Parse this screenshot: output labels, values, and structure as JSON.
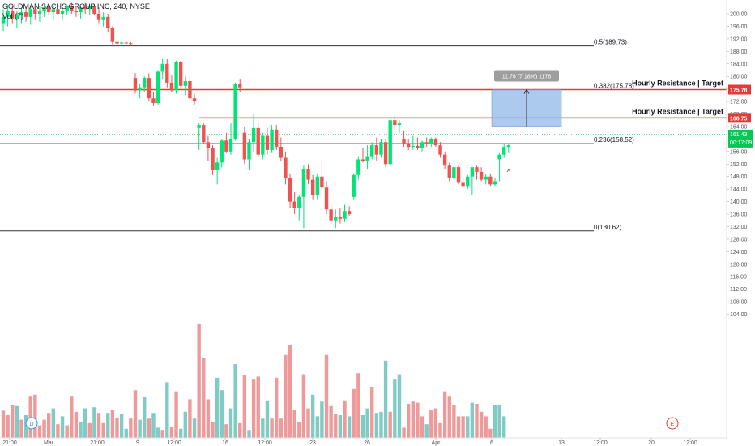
{
  "header": {
    "symbol_line": "GOLDMAN SACHS GROUP INC, 240, NYSE",
    "volume_line": "Vol (7)"
  },
  "colors": {
    "up": "#26a69a",
    "up_bright": "#00e676",
    "down": "#ef5350",
    "vol_up": "#80cbc4",
    "vol_down": "#ef9a9a",
    "resistance": "#e53935",
    "fib": "#333333",
    "current": "#00c853",
    "box_fill": "#90b8e8",
    "measure_bg": "#9e9e9e"
  },
  "fib_levels": [
    {
      "label": "0.5(189.73)",
      "price": 189.73
    },
    {
      "label": "0.382(175.78)",
      "price": 175.78
    },
    {
      "label": "0.236(158.52)",
      "price": 158.52
    },
    {
      "label": "0(130.62)",
      "price": 130.62
    }
  ],
  "resistances": [
    {
      "label": "Hourly Resistance | Target",
      "price": 175.78,
      "badge": "175.78"
    },
    {
      "label": "Hourly Resistance | Target",
      "price": 166.75,
      "badge": "166.75"
    }
  ],
  "current_price": {
    "price": 161.43,
    "badge_top": "161.43",
    "badge_bottom": "00:17:09"
  },
  "measure": {
    "label": "11.76 (7.18%) 1176",
    "from": 164.02,
    "to": 175.78
  },
  "price_axis": {
    "min": 100,
    "max": 202,
    "ticks": [
      "200.00",
      "196.00",
      "192.00",
      "188.00",
      "184.00",
      "180.00",
      "176.00",
      "172.00",
      "168.00",
      "164.00",
      "160.00",
      "156.00",
      "152.00",
      "148.00",
      "144.00",
      "140.00",
      "136.00",
      "132.00",
      "128.00",
      "124.00",
      "120.00",
      "116.00",
      "112.00",
      "108.00",
      "104.00"
    ]
  },
  "time_axis": {
    "ticks": [
      "21:00",
      "Mar",
      "21:00",
      "9",
      "12:00",
      "16",
      "12:00",
      "23",
      "26",
      "Apr",
      "6",
      "13",
      "12:00",
      "20",
      "12:00"
    ]
  },
  "markers": {
    "dividend": "D",
    "earnings": "E"
  },
  "chart_data": {
    "type": "candlestick",
    "title": "GOLDMAN SACHS GROUP INC, 240, NYSE",
    "ylim": [
      100,
      202
    ],
    "candles": [
      [
        197.0,
        201.5,
        194.5,
        199.0
      ],
      [
        199.0,
        203.0,
        196.0,
        201.0
      ],
      [
        201.0,
        202.5,
        197.0,
        198.5
      ],
      [
        198.5,
        201.0,
        195.5,
        199.5
      ],
      [
        199.5,
        202.0,
        197.0,
        200.5
      ],
      [
        200.5,
        202.0,
        197.5,
        199.0
      ],
      [
        199.0,
        202.0,
        196.5,
        201.5
      ],
      [
        201.5,
        202.5,
        198.0,
        200.0
      ],
      [
        200.0,
        202.5,
        197.5,
        201.0
      ],
      [
        201.0,
        203.0,
        199.0,
        202.0
      ],
      [
        202.0,
        203.0,
        199.5,
        200.5
      ],
      [
        200.5,
        202.5,
        198.0,
        201.5
      ],
      [
        201.5,
        203.0,
        199.0,
        200.0
      ],
      [
        200.0,
        202.0,
        198.0,
        201.0
      ],
      [
        201.0,
        203.0,
        199.5,
        202.5
      ],
      [
        202.5,
        203.5,
        200.0,
        201.0
      ],
      [
        201.0,
        202.5,
        199.0,
        200.5
      ],
      [
        200.5,
        202.5,
        198.5,
        202.0
      ],
      [
        202.0,
        203.5,
        200.0,
        201.5
      ],
      [
        201.5,
        203.0,
        199.5,
        202.5
      ],
      [
        202.5,
        203.0,
        199.5,
        200.0
      ],
      [
        200.0,
        202.0,
        197.0,
        198.0
      ],
      [
        198.0,
        200.5,
        196.0,
        199.0
      ],
      [
        199.0,
        200.0,
        194.0,
        195.5
      ],
      [
        195.5,
        196.0,
        189.5,
        191.0
      ],
      [
        191.0,
        192.5,
        188.0,
        190.5
      ],
      [
        190.5,
        191.5,
        189.5,
        190.8
      ],
      [
        190.8,
        191.2,
        190.0,
        190.6
      ],
      [
        190.6,
        191.0,
        189.8,
        190.4
      ],
      [
        179.5,
        181.0,
        174.5,
        175.5
      ],
      [
        175.5,
        177.5,
        173.0,
        176.5
      ],
      [
        176.5,
        180.0,
        175.0,
        179.5
      ],
      [
        179.5,
        181.0,
        172.0,
        173.0
      ],
      [
        173.0,
        175.0,
        170.5,
        171.5
      ],
      [
        171.5,
        182.0,
        171.0,
        181.5
      ],
      [
        181.5,
        185.5,
        179.0,
        184.0
      ],
      [
        184.0,
        185.5,
        176.5,
        178.0
      ],
      [
        178.0,
        180.5,
        175.0,
        175.5
      ],
      [
        175.5,
        185.0,
        174.5,
        184.5
      ],
      [
        184.5,
        185.0,
        176.0,
        177.0
      ],
      [
        177.0,
        180.0,
        174.0,
        178.5
      ],
      [
        178.5,
        180.5,
        172.0,
        173.0
      ],
      [
        173.0,
        174.5,
        171.0,
        172.0
      ],
      [
        163.5,
        165.0,
        156.5,
        164.5
      ],
      [
        164.5,
        165.0,
        158.5,
        159.0
      ],
      [
        159.0,
        161.0,
        153.0,
        157.0
      ],
      [
        157.0,
        158.0,
        148.5,
        150.0
      ],
      [
        150.0,
        154.0,
        145.5,
        152.5
      ],
      [
        152.5,
        160.0,
        151.0,
        159.5
      ],
      [
        159.5,
        162.0,
        155.5,
        156.0
      ],
      [
        156.0,
        165.0,
        155.0,
        160.0
      ],
      [
        160.0,
        178.0,
        159.5,
        177.5
      ],
      [
        177.5,
        179.0,
        175.0,
        176.5
      ],
      [
        162.0,
        164.0,
        152.0,
        153.5
      ],
      [
        153.5,
        160.0,
        150.0,
        159.0
      ],
      [
        159.0,
        168.0,
        156.0,
        163.5
      ],
      [
        163.5,
        165.0,
        154.5,
        155.0
      ],
      [
        155.0,
        162.0,
        153.5,
        161.0
      ],
      [
        161.0,
        163.5,
        155.0,
        156.5
      ],
      [
        156.5,
        164.5,
        155.5,
        163.0
      ],
      [
        163.0,
        164.5,
        156.5,
        157.5
      ],
      [
        157.5,
        160.5,
        153.0,
        154.0
      ],
      [
        154.0,
        156.0,
        145.5,
        147.5
      ],
      [
        147.5,
        149.0,
        138.0,
        140.0
      ],
      [
        140.0,
        143.0,
        136.0,
        138.0
      ],
      [
        138.0,
        142.0,
        134.0,
        141.5
      ],
      [
        141.5,
        151.5,
        131.5,
        150.5
      ],
      [
        150.5,
        152.0,
        145.5,
        147.0
      ],
      [
        147.0,
        148.5,
        140.5,
        142.0
      ],
      [
        142.0,
        149.0,
        140.5,
        148.0
      ],
      [
        148.0,
        153.0,
        143.5,
        144.5
      ],
      [
        144.5,
        146.5,
        136.0,
        137.5
      ],
      [
        137.5,
        139.0,
        132.5,
        134.0
      ],
      [
        134.0,
        137.5,
        131.5,
        135.0
      ],
      [
        135.0,
        138.0,
        133.0,
        134.5
      ],
      [
        134.5,
        139.0,
        133.5,
        137.0
      ],
      [
        137.0,
        138.5,
        135.5,
        136.0
      ],
      [
        141.5,
        149.0,
        140.5,
        148.5
      ],
      [
        148.5,
        154.5,
        147.0,
        153.5
      ],
      [
        153.5,
        157.0,
        152.5,
        153.0
      ],
      [
        153.0,
        158.0,
        150.5,
        154.5
      ],
      [
        154.5,
        159.0,
        153.5,
        158.0
      ],
      [
        158.0,
        160.5,
        153.0,
        155.0
      ],
      [
        155.0,
        160.0,
        154.0,
        159.0
      ],
      [
        159.0,
        160.0,
        151.0,
        152.0
      ],
      [
        152.0,
        166.5,
        151.5,
        166.0
      ],
      [
        166.0,
        167.5,
        163.0,
        164.5
      ],
      [
        164.5,
        166.0,
        162.0,
        165.0
      ],
      [
        160.0,
        162.5,
        157.5,
        158.5
      ],
      [
        158.5,
        160.0,
        156.5,
        157.5
      ],
      [
        157.5,
        161.0,
        156.5,
        157.8
      ],
      [
        157.8,
        160.5,
        156.5,
        157.2
      ],
      [
        157.2,
        159.5,
        156.0,
        159.0
      ],
      [
        159.0,
        160.5,
        157.5,
        158.3
      ],
      [
        158.3,
        160.5,
        157.5,
        160.0
      ],
      [
        160.0,
        160.5,
        157.5,
        158.0
      ],
      [
        158.0,
        159.0,
        154.0,
        155.0
      ],
      [
        155.0,
        156.0,
        150.5,
        151.5
      ],
      [
        151.5,
        152.5,
        146.5,
        147.5
      ],
      [
        147.5,
        152.0,
        146.5,
        151.0
      ],
      [
        151.0,
        151.5,
        145.5,
        146.0
      ],
      [
        146.0,
        147.5,
        144.5,
        145.0
      ],
      [
        145.0,
        148.5,
        144.0,
        148.0
      ],
      [
        148.0,
        150.0,
        142.0,
        151.0
      ],
      [
        151.0,
        151.5,
        147.0,
        149.5
      ],
      [
        149.5,
        151.0,
        146.5,
        147.0
      ],
      [
        147.0,
        149.0,
        145.5,
        148.0
      ],
      [
        148.0,
        149.0,
        145.0,
        145.5
      ],
      [
        145.5,
        147.5,
        145.0,
        146.5
      ],
      [
        153.5,
        155.5,
        146.5,
        155.0
      ],
      [
        155.0,
        158.5,
        154.0,
        157.5
      ],
      [
        157.5,
        158.5,
        155.5,
        158.0
      ]
    ],
    "volume": [
      [
        24,
        0
      ],
      [
        20,
        0
      ],
      [
        29,
        0
      ],
      [
        28,
        1
      ],
      [
        16,
        0
      ],
      [
        20,
        1
      ],
      [
        37,
        0
      ],
      [
        38,
        0
      ],
      [
        11,
        0
      ],
      [
        16,
        0
      ],
      [
        22,
        0
      ],
      [
        26,
        1
      ],
      [
        12,
        0
      ],
      [
        19,
        1
      ],
      [
        11,
        0
      ],
      [
        37,
        0
      ],
      [
        23,
        0
      ],
      [
        14,
        1
      ],
      [
        26,
        1
      ],
      [
        13,
        0
      ],
      [
        27,
        1
      ],
      [
        22,
        0
      ],
      [
        13,
        0
      ],
      [
        22,
        1
      ],
      [
        25,
        0
      ],
      [
        18,
        0
      ],
      [
        21,
        1
      ],
      [
        8,
        1
      ],
      [
        17,
        0
      ],
      [
        42,
        0
      ],
      [
        16,
        1
      ],
      [
        36,
        1
      ],
      [
        17,
        0
      ],
      [
        22,
        1
      ],
      [
        9,
        1
      ],
      [
        7,
        0
      ],
      [
        49,
        1
      ],
      [
        10,
        0
      ],
      [
        41,
        0
      ],
      [
        8,
        1
      ],
      [
        23,
        1
      ],
      [
        34,
        0
      ],
      [
        17,
        1
      ],
      [
        100,
        0
      ],
      [
        70,
        0
      ],
      [
        34,
        0
      ],
      [
        14,
        0
      ],
      [
        53,
        1
      ],
      [
        42,
        1
      ],
      [
        12,
        0
      ],
      [
        26,
        1
      ],
      [
        65,
        1
      ],
      [
        13,
        0
      ],
      [
        55,
        0
      ],
      [
        7,
        1
      ],
      [
        52,
        0
      ],
      [
        54,
        0
      ],
      [
        17,
        1
      ],
      [
        33,
        1
      ],
      [
        17,
        0
      ],
      [
        53,
        0
      ],
      [
        17,
        0
      ],
      [
        73,
        0
      ],
      [
        82,
        0
      ],
      [
        25,
        0
      ],
      [
        14,
        0
      ],
      [
        56,
        0
      ],
      [
        26,
        0
      ],
      [
        38,
        1
      ],
      [
        19,
        1
      ],
      [
        32,
        1
      ],
      [
        73,
        0
      ],
      [
        28,
        0
      ],
      [
        21,
        0
      ],
      [
        20,
        1
      ],
      [
        33,
        0
      ],
      [
        19,
        1
      ],
      [
        43,
        0
      ],
      [
        57,
        0
      ],
      [
        20,
        1
      ],
      [
        26,
        1
      ],
      [
        45,
        0
      ],
      [
        22,
        1
      ],
      [
        23,
        1
      ],
      [
        68,
        1
      ],
      [
        23,
        0
      ],
      [
        52,
        1
      ],
      [
        56,
        1
      ],
      [
        9,
        0
      ],
      [
        30,
        0
      ],
      [
        32,
        0
      ],
      [
        31,
        0
      ],
      [
        19,
        0
      ],
      [
        12,
        1
      ],
      [
        25,
        0
      ],
      [
        26,
        0
      ],
      [
        13,
        0
      ],
      [
        41,
        0
      ],
      [
        37,
        0
      ],
      [
        29,
        0
      ],
      [
        19,
        0
      ],
      [
        19,
        0
      ],
      [
        19,
        1
      ],
      [
        31,
        1
      ],
      [
        30,
        0
      ],
      [
        23,
        0
      ],
      [
        19,
        0
      ],
      [
        8,
        0
      ],
      [
        29,
        1
      ],
      [
        29,
        1
      ],
      [
        19,
        1
      ]
    ]
  }
}
